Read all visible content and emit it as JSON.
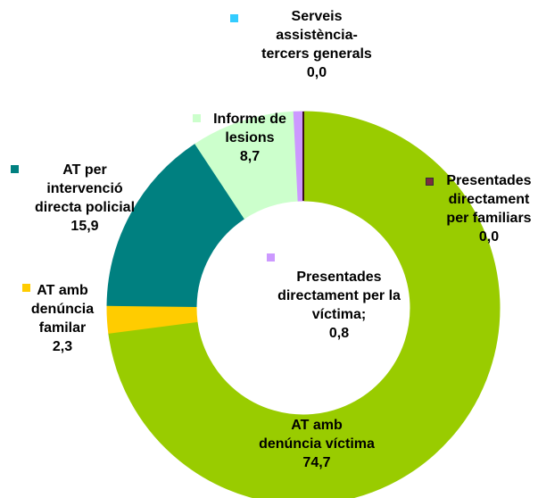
{
  "chart_data": {
    "type": "donut",
    "categories": [
      "Presentades directament per familiars",
      "AT amb denúncia víctima",
      "AT amb denúncia familar",
      "AT per intervenció directa policial",
      "Informe de lesions",
      "Presentades directament per la víctima;",
      "Serveis assistència-tercers generals"
    ],
    "values": [
      0.0,
      74.7,
      2.3,
      15.9,
      8.7,
      0.8,
      0.0
    ],
    "value_labels": [
      "0,0",
      "74,7",
      "2,3",
      "15,9",
      "8,7",
      "0,8",
      "0,0"
    ],
    "colors": [
      "#7b2c3f",
      "#99cc00",
      "#ffcc00",
      "#008080",
      "#ccffcc",
      "#cc99ff",
      "#33ccff"
    ]
  }
}
